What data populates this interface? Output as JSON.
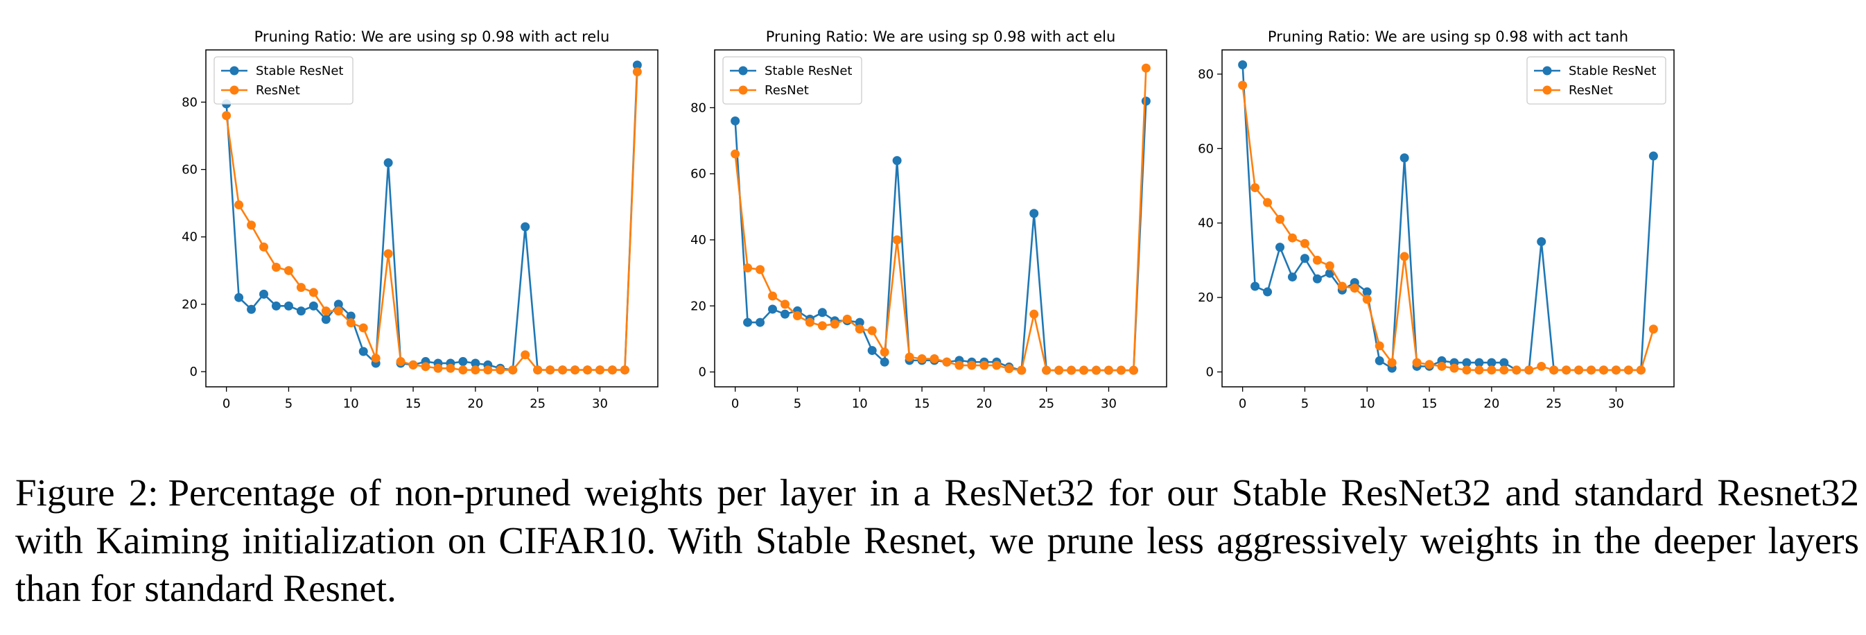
{
  "figure": {
    "caption_label": "Figure 2:",
    "caption_text": "Percentage of non-pruned weights per layer in a ResNet32 for our Stable ResNet32 and standard Resnet32 with Kaiming initialization on CIFAR10. With Stable Resnet, we prune less aggressively weights in the deeper layers than for standard Resnet."
  },
  "colors": {
    "stable": "#1f77b4",
    "resnet": "#ff7f0e"
  },
  "chart_data": [
    {
      "type": "line",
      "title": "Pruning Ratio: We are using sp 0.98 with act relu",
      "xlabel": "",
      "ylabel": "",
      "x": [
        0,
        1,
        2,
        3,
        4,
        5,
        6,
        7,
        8,
        9,
        10,
        11,
        12,
        13,
        14,
        15,
        16,
        17,
        18,
        19,
        20,
        21,
        22,
        23,
        24,
        25,
        26,
        27,
        28,
        29,
        30,
        31,
        32,
        33
      ],
      "xlim": [
        -1.65,
        34.65
      ],
      "ylim": [
        -4.5,
        95.5
      ],
      "xticks": [
        0,
        5,
        10,
        15,
        20,
        25,
        30
      ],
      "yticks": [
        0,
        20,
        40,
        60,
        80
      ],
      "grid": false,
      "legend_position": "upper left",
      "series": [
        {
          "name": "Stable ResNet",
          "color": "#1f77b4",
          "values": [
            79.5,
            22,
            18.5,
            23,
            19.5,
            19.5,
            18,
            19.5,
            15.5,
            20,
            16.5,
            6,
            2.5,
            62,
            2.5,
            2,
            3,
            2.5,
            2.5,
            3,
            2.5,
            2,
            1,
            0.5,
            43,
            0.5,
            0.5,
            0.5,
            0.5,
            0.5,
            0.5,
            0.5,
            0.5,
            91
          ]
        },
        {
          "name": "ResNet",
          "color": "#ff7f0e",
          "values": [
            76,
            49.5,
            43.5,
            37,
            31,
            30,
            25,
            23.5,
            18,
            18,
            14.5,
            13,
            4,
            35,
            3,
            2,
            1.5,
            1,
            1,
            0.5,
            0.5,
            0.5,
            0.5,
            0.5,
            5,
            0.5,
            0.5,
            0.5,
            0.5,
            0.5,
            0.5,
            0.5,
            0.5,
            89
          ]
        }
      ]
    },
    {
      "type": "line",
      "title": "Pruning Ratio: We are using sp 0.98 with act elu",
      "xlabel": "",
      "ylabel": "",
      "x": [
        0,
        1,
        2,
        3,
        4,
        5,
        6,
        7,
        8,
        9,
        10,
        11,
        12,
        13,
        14,
        15,
        16,
        17,
        18,
        19,
        20,
        21,
        22,
        23,
        24,
        25,
        26,
        27,
        28,
        29,
        30,
        31,
        32,
        33
      ],
      "xlim": [
        -1.65,
        34.65
      ],
      "ylim": [
        -4.5,
        97.5
      ],
      "xticks": [
        0,
        5,
        10,
        15,
        20,
        25,
        30
      ],
      "yticks": [
        0,
        20,
        40,
        60,
        80
      ],
      "grid": false,
      "legend_position": "upper left",
      "series": [
        {
          "name": "Stable ResNet",
          "color": "#1f77b4",
          "values": [
            76,
            15,
            15,
            19,
            17.5,
            18.5,
            16,
            18,
            15.5,
            15.5,
            15,
            6.5,
            3,
            64,
            3.5,
            3.5,
            3.5,
            3,
            3.5,
            3,
            3,
            3,
            1.5,
            0.5,
            48,
            0.5,
            0.5,
            0.5,
            0.5,
            0.5,
            0.5,
            0.5,
            0.5,
            82
          ]
        },
        {
          "name": "ResNet",
          "color": "#ff7f0e",
          "values": [
            66,
            31.5,
            31,
            23,
            20.5,
            17,
            15,
            14,
            14.5,
            16,
            13,
            12.5,
            6,
            40,
            4.5,
            4,
            4,
            3,
            2,
            2,
            2,
            2,
            1,
            0.5,
            17.5,
            0.5,
            0.5,
            0.5,
            0.5,
            0.5,
            0.5,
            0.5,
            0.5,
            92
          ]
        }
      ]
    },
    {
      "type": "line",
      "title": "Pruning Ratio: We are using sp 0.98 with act tanh",
      "xlabel": "",
      "ylabel": "",
      "x": [
        0,
        1,
        2,
        3,
        4,
        5,
        6,
        7,
        8,
        9,
        10,
        11,
        12,
        13,
        14,
        15,
        16,
        17,
        18,
        19,
        20,
        21,
        22,
        23,
        24,
        25,
        26,
        27,
        28,
        29,
        30,
        31,
        32,
        33
      ],
      "xlim": [
        -1.65,
        34.65
      ],
      "ylim": [
        -4,
        86.5
      ],
      "xticks": [
        0,
        5,
        10,
        15,
        20,
        25,
        30
      ],
      "yticks": [
        0,
        20,
        40,
        60,
        80
      ],
      "grid": false,
      "legend_position": "upper right",
      "series": [
        {
          "name": "Stable ResNet",
          "color": "#1f77b4",
          "values": [
            82.5,
            23,
            21.5,
            33.5,
            25.5,
            30.5,
            25,
            26.5,
            22,
            24,
            21.5,
            3,
            1,
            57.5,
            1.5,
            1.5,
            3,
            2.5,
            2.5,
            2.5,
            2.5,
            2.5,
            0.5,
            0.5,
            35,
            0.5,
            0.5,
            0.5,
            0.5,
            0.5,
            0.5,
            0.5,
            0.5,
            58
          ]
        },
        {
          "name": "ResNet",
          "color": "#ff7f0e",
          "values": [
            77,
            49.5,
            45.5,
            41,
            36,
            34.5,
            30,
            28.5,
            23,
            22.5,
            19.5,
            7,
            2.5,
            31,
            2.5,
            2,
            1.5,
            1,
            0.5,
            0.5,
            0.5,
            0.5,
            0.5,
            0.5,
            1.5,
            0.5,
            0.5,
            0.5,
            0.5,
            0.5,
            0.5,
            0.5,
            0.5,
            11.5
          ]
        }
      ]
    }
  ]
}
